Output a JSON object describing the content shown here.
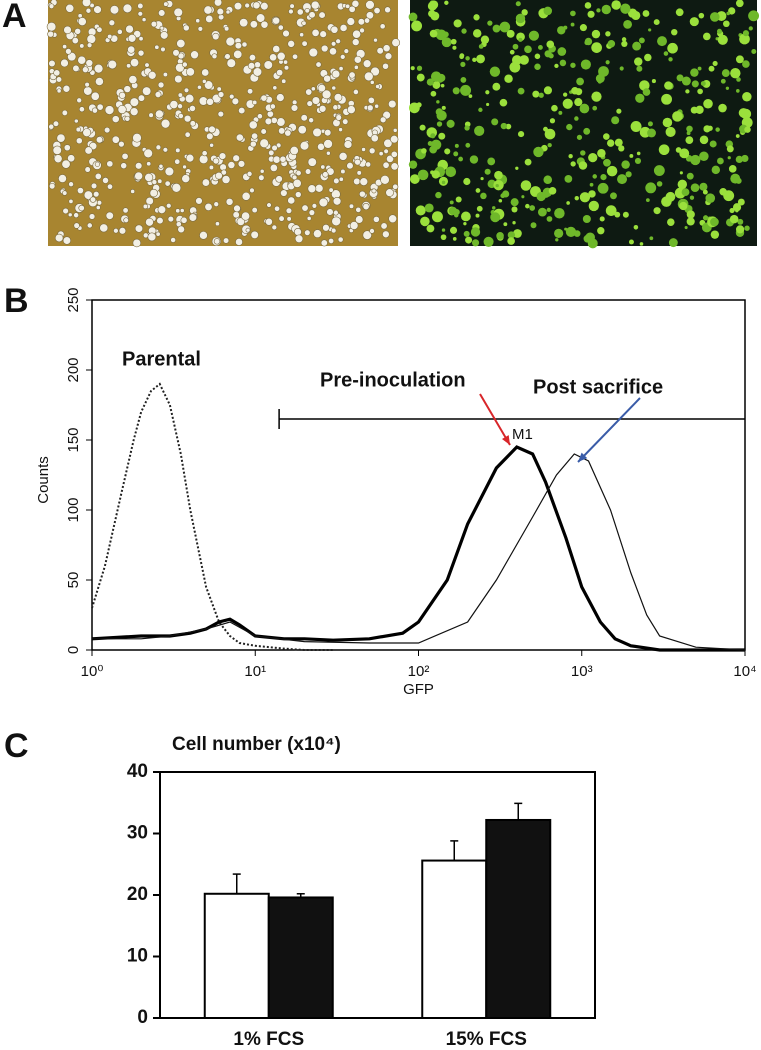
{
  "panel_labels": [
    "A",
    "B",
    "C"
  ],
  "chart_data": [
    {
      "type": "line",
      "xscale": "log",
      "xlabel": "GFP",
      "ylabel": "Counts",
      "xlim": [
        1,
        10000
      ],
      "ylim": [
        0,
        250
      ],
      "xticks": [
        {
          "value": 1,
          "label": "10⁰"
        },
        {
          "value": 10,
          "label": "10¹"
        },
        {
          "value": 100,
          "label": "10²"
        },
        {
          "value": 1000,
          "label": "10³"
        },
        {
          "value": 10000,
          "label": "10⁴"
        }
      ],
      "yticks": [
        0,
        50,
        100,
        150,
        200,
        250
      ],
      "series": [
        {
          "name": "Parental",
          "color": "#222222",
          "style": "dotted",
          "x": [
            1,
            1.2,
            1.5,
            1.8,
            2.0,
            2.3,
            2.6,
            3.0,
            3.5,
            4,
            5,
            6,
            7,
            8,
            10,
            15,
            20,
            30
          ],
          "values": [
            30,
            60,
            110,
            150,
            170,
            185,
            190,
            175,
            140,
            100,
            45,
            20,
            10,
            5,
            3,
            1,
            0,
            0
          ]
        },
        {
          "name": "Pre-inoculation",
          "color": "#000000",
          "style": "thick",
          "x": [
            1,
            2,
            3,
            4,
            5,
            6,
            7,
            8,
            10,
            15,
            20,
            30,
            50,
            80,
            100,
            150,
            200,
            300,
            400,
            500,
            600,
            800,
            1000,
            1300,
            1600,
            2000,
            3000,
            10000
          ],
          "values": [
            8,
            10,
            10,
            12,
            15,
            20,
            22,
            18,
            10,
            8,
            8,
            7,
            8,
            12,
            20,
            50,
            90,
            130,
            145,
            140,
            120,
            80,
            45,
            20,
            8,
            3,
            0,
            0
          ]
        },
        {
          "name": "Post sacrifice",
          "color": "#111111",
          "style": "thin",
          "x": [
            1,
            2,
            3,
            5,
            7,
            10,
            20,
            50,
            100,
            200,
            300,
            500,
            700,
            900,
            1100,
            1500,
            2000,
            2500,
            3000,
            5000,
            10000
          ],
          "values": [
            8,
            8,
            10,
            15,
            20,
            10,
            6,
            5,
            5,
            20,
            50,
            95,
            125,
            140,
            135,
            100,
            55,
            25,
            10,
            2,
            0
          ]
        }
      ],
      "annotations": [
        {
          "text": "Parental",
          "color": "#333333"
        },
        {
          "text": "Pre-inoculation",
          "color": "#d8262a"
        },
        {
          "text": "Post sacrifice",
          "color": "#3a5ca8"
        }
      ],
      "gate": {
        "label": "M1",
        "range": [
          14,
          10000
        ],
        "y": 165
      }
    },
    {
      "type": "bar",
      "title": "Cell number (x10⁴)",
      "categories": [
        "1% FCS",
        "15% FCS"
      ],
      "ylim": [
        0,
        40
      ],
      "yticks": [
        0,
        10,
        20,
        30,
        40
      ],
      "series": [
        {
          "color": "#ffffff",
          "values": [
            20.2,
            25.6
          ],
          "errors": [
            3.2,
            3.2
          ]
        },
        {
          "color": "#111111",
          "values": [
            19.6,
            32.2
          ],
          "errors": [
            0.6,
            2.7
          ]
        }
      ]
    }
  ]
}
